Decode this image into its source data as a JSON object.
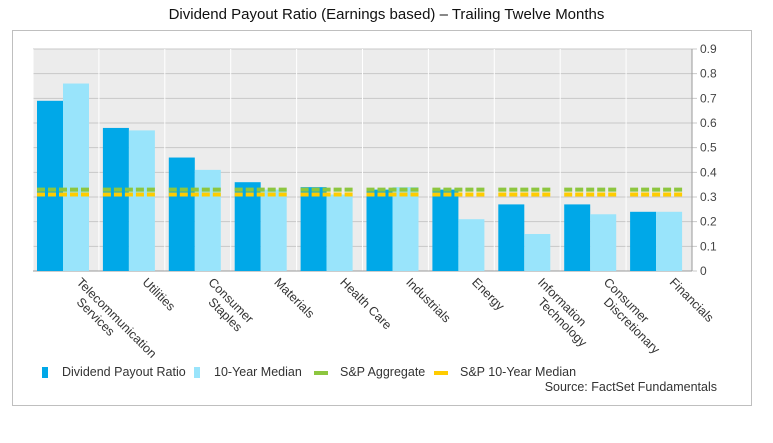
{
  "colors": {
    "payout": "#00a8e8",
    "median": "#99e4fb",
    "sp_aggregate": "#8dc63f",
    "sp_median": "#ffcc00",
    "plot_bg": "#ececec"
  },
  "chart_data": {
    "type": "bar",
    "title": "Dividend Payout Ratio (Earnings based) – Trailing Twelve Months",
    "categories": [
      "Telecommunication Services",
      "Utilities",
      "Consumer Staples",
      "Materials",
      "Health Care",
      "Industrials",
      "Energy",
      "Information Technology",
      "Consumer Discretionary",
      "Financials"
    ],
    "category_tick_labels": [
      [
        "Telecommunication",
        "Services"
      ],
      [
        "Utilities"
      ],
      [
        "Consumer",
        "Staples"
      ],
      [
        "Materials"
      ],
      [
        "Health Care"
      ],
      [
        "Industrials"
      ],
      [
        "Energy"
      ],
      [
        "Information",
        "Technology"
      ],
      [
        "Consumer",
        "Discretionary"
      ],
      [
        "Financials"
      ]
    ],
    "series": [
      {
        "name": "Dividend Payout Ratio",
        "values": [
          0.69,
          0.58,
          0.46,
          0.36,
          0.34,
          0.33,
          0.33,
          0.27,
          0.27,
          0.24
        ]
      },
      {
        "name": "10-Year Median",
        "values": [
          0.76,
          0.57,
          0.41,
          0.33,
          0.31,
          0.34,
          0.21,
          0.15,
          0.23,
          0.24
        ]
      }
    ],
    "reference_lines": [
      {
        "name": "S&P Aggregate",
        "value": 0.33
      },
      {
        "name": "S&P 10-Year Median",
        "value": 0.31
      }
    ],
    "ylim": [
      0,
      0.9
    ],
    "yticks": [
      "0",
      "0.1",
      "0.2",
      "0.3",
      "0.4",
      "0.5",
      "0.6",
      "0.7",
      "0.8",
      "0.9"
    ],
    "y_axis_position": "right",
    "grid": true,
    "legend": [
      "Dividend Payout Ratio",
      "10-Year Median",
      "S&P Aggregate",
      "S&P 10-Year Median"
    ],
    "legend_position": "bottom",
    "source": "Source: FactSet Fundamentals"
  }
}
